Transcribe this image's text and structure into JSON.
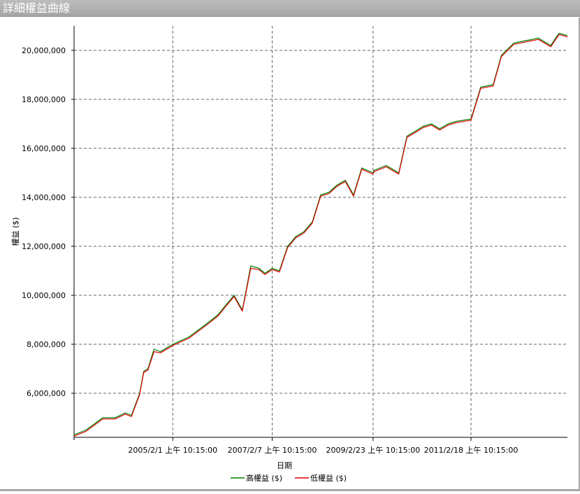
{
  "window": {
    "title": "詳細權益曲線"
  },
  "chart_data": {
    "type": "line",
    "title": "",
    "xlabel": "日期",
    "ylabel": "權益 ($)",
    "ylim": [
      4200000,
      21000000
    ],
    "yticks": [
      6000000,
      8000000,
      10000000,
      12000000,
      14000000,
      16000000,
      18000000,
      20000000
    ],
    "ytick_labels": [
      "6,000,000",
      "8,000,000",
      "10,000,000",
      "12,000,000",
      "14,000,000",
      "16,000,000",
      "18,000,000",
      "20,000,000"
    ],
    "xlim": [
      "2003-02-01",
      "2013-02-01"
    ],
    "xticks": [
      "2005-02-01",
      "2007-02-07",
      "2009-02-23",
      "2011-02-18"
    ],
    "xtick_labels": [
      "2005/2/1 上午 10:15:00",
      "2007/2/7 上午 10:15:00",
      "2009/2/23 上午 10:15:00",
      "2011/2/18 上午 10:15:00"
    ],
    "grid": true,
    "legend_position": "bottom",
    "series": [
      {
        "name": "高權益 ($)",
        "color": "#008000",
        "x": [
          "2003-02-01",
          "2003-05-01",
          "2003-09-01",
          "2003-12-01",
          "2004-02-15",
          "2004-04-01",
          "2004-06-01",
          "2004-07-01",
          "2004-08-01",
          "2004-09-15",
          "2004-11-01",
          "2005-02-01",
          "2005-06-01",
          "2005-10-01",
          "2006-01-01",
          "2006-03-01",
          "2006-05-01",
          "2006-07-01",
          "2006-09-01",
          "2006-11-01",
          "2006-12-15",
          "2007-02-07",
          "2007-04-01",
          "2007-06-01",
          "2007-08-01",
          "2007-10-01",
          "2007-12-01",
          "2008-02-01",
          "2008-04-01",
          "2008-06-01",
          "2008-08-01",
          "2008-10-01",
          "2008-12-01",
          "2009-02-23",
          "2009-03-01",
          "2009-06-01",
          "2009-09-01",
          "2009-11-01",
          "2010-01-01",
          "2010-03-01",
          "2010-05-01",
          "2010-07-01",
          "2010-09-01",
          "2010-11-01",
          "2011-02-18",
          "2011-05-01",
          "2011-08-01",
          "2011-10-01",
          "2012-01-01",
          "2012-04-01",
          "2012-07-01",
          "2012-10-01",
          "2012-12-01",
          "2013-02-01"
        ],
        "values": [
          4300000,
          4500000,
          5000000,
          5000000,
          5200000,
          5100000,
          6000000,
          6900000,
          7000000,
          7800000,
          7700000,
          8000000,
          8300000,
          8800000,
          9200000,
          9600000,
          10000000,
          9400000,
          11200000,
          11100000,
          10900000,
          11100000,
          11000000,
          12000000,
          12400000,
          12600000,
          13000000,
          14100000,
          14200000,
          14500000,
          14700000,
          14100000,
          15200000,
          15000000,
          15100000,
          15300000,
          15000000,
          16500000,
          16700000,
          16900000,
          17000000,
          16800000,
          17000000,
          17100000,
          17200000,
          18500000,
          18600000,
          19800000,
          20300000,
          20400000,
          20500000,
          20200000,
          20700000,
          20600000
        ]
      },
      {
        "name": "低權益 ($)",
        "color": "#e00000",
        "x": [
          "2003-02-01",
          "2003-05-01",
          "2003-09-01",
          "2003-12-01",
          "2004-02-15",
          "2004-04-01",
          "2004-06-01",
          "2004-07-01",
          "2004-08-01",
          "2004-09-15",
          "2004-11-01",
          "2005-02-01",
          "2005-06-01",
          "2005-10-01",
          "2006-01-01",
          "2006-03-01",
          "2006-05-01",
          "2006-07-01",
          "2006-09-01",
          "2006-11-01",
          "2006-12-15",
          "2007-02-07",
          "2007-04-01",
          "2007-06-01",
          "2007-08-01",
          "2007-10-01",
          "2007-12-01",
          "2008-02-01",
          "2008-04-01",
          "2008-06-01",
          "2008-08-01",
          "2008-10-01",
          "2008-12-01",
          "2009-02-23",
          "2009-03-01",
          "2009-06-01",
          "2009-09-01",
          "2009-11-01",
          "2010-01-01",
          "2010-03-01",
          "2010-05-01",
          "2010-07-01",
          "2010-09-01",
          "2010-11-01",
          "2011-02-18",
          "2011-05-01",
          "2011-08-01",
          "2011-10-01",
          "2012-01-01",
          "2012-04-01",
          "2012-07-01",
          "2012-10-01",
          "2012-12-01",
          "2013-02-01"
        ],
        "values": [
          4250000,
          4450000,
          4950000,
          4950000,
          5150000,
          5050000,
          5950000,
          6850000,
          6950000,
          7700000,
          7650000,
          7950000,
          8250000,
          8750000,
          9150000,
          9550000,
          9950000,
          9350000,
          11100000,
          11050000,
          10850000,
          11050000,
          10950000,
          11950000,
          12350000,
          12550000,
          12950000,
          14050000,
          14150000,
          14450000,
          14650000,
          14050000,
          15150000,
          14950000,
          15050000,
          15250000,
          14950000,
          16450000,
          16650000,
          16850000,
          16950000,
          16750000,
          16950000,
          17050000,
          17150000,
          18450000,
          18550000,
          19750000,
          20250000,
          20350000,
          20450000,
          20150000,
          20650000,
          20550000
        ]
      }
    ]
  }
}
